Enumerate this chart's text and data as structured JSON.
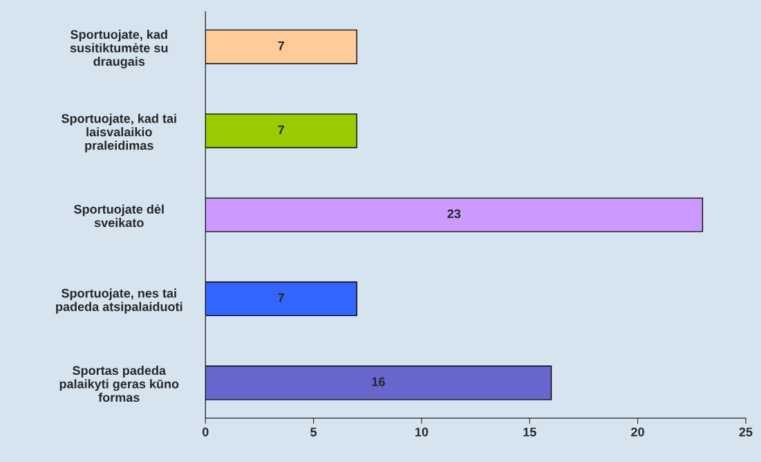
{
  "chart_data": {
    "type": "bar",
    "orientation": "horizontal",
    "categories": [
      "Sportuojate, kad\nsusitiktumėte su\ndraugais",
      "Sportuojate, kad tai\nlaisvalaikio\npraleidimas",
      "Sportuojate dėl\nsveikato",
      "Sportuojate, nes tai\npadeda atsipalaiduoti",
      "Sportas padeda\npalaikyti geras kūno\nformas"
    ],
    "values": [
      7,
      7,
      23,
      7,
      16
    ],
    "colors": [
      "#ffcc99",
      "#99cc00",
      "#cc99ff",
      "#3366ff",
      "#6666cc"
    ],
    "xlim": [
      0,
      25
    ],
    "xticks": [
      0,
      5,
      10,
      15,
      20,
      25
    ],
    "data_labels": true,
    "grid": false,
    "legend": false
  }
}
